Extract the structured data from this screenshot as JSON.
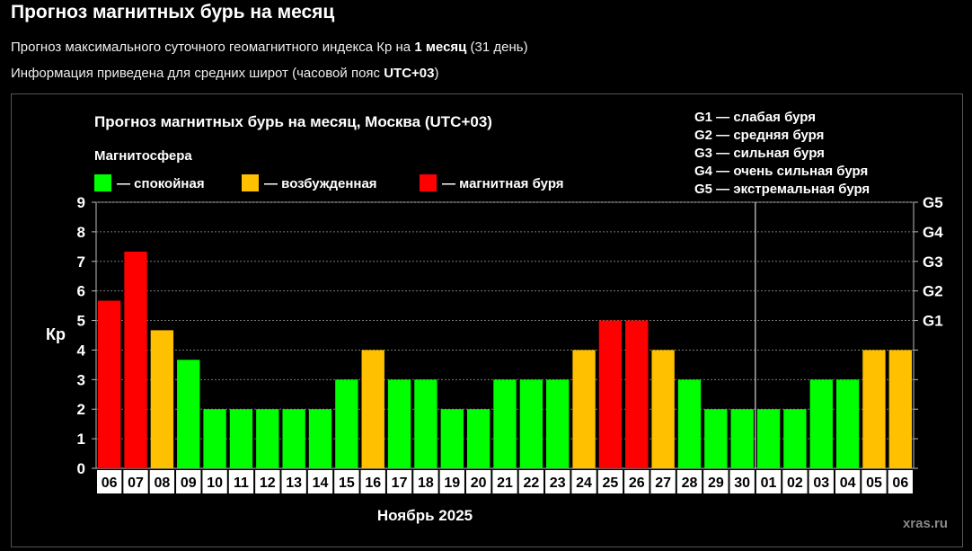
{
  "header": {
    "title": "Прогноз магнитных бурь на месяц",
    "line1_prefix": "Прогноз максимального суточного геомагнитного индекса Кр на ",
    "line1_bold": "1 месяц",
    "line1_suffix": " (31 день)",
    "line2_prefix": "Информация приведена для средних широт (часовой пояс ",
    "line2_bold": "UTC+03",
    "line2_suffix": ")"
  },
  "chart_data": {
    "type": "bar",
    "title": "Прогноз магнитных бурь на месяц, Москва (UTC+03)",
    "ylabel": "Кр",
    "xlabel": "Ноябрь 2025",
    "ylim": [
      0,
      9
    ],
    "yticks": [
      "0",
      "1",
      "2",
      "3",
      "4",
      "5",
      "6",
      "7",
      "8",
      "9"
    ],
    "right_axis": [
      {
        "kp": 5,
        "label": "G1"
      },
      {
        "kp": 6,
        "label": "G2"
      },
      {
        "kp": 7,
        "label": "G3"
      },
      {
        "kp": 8,
        "label": "G4"
      },
      {
        "kp": 9,
        "label": "G5"
      }
    ],
    "legend_title": "Магнитосфера",
    "legend": [
      {
        "label": "— спокойная",
        "color": "#00ff00"
      },
      {
        "label": "— возбужденная",
        "color": "#ffc000"
      },
      {
        "label": "— магнитная буря",
        "color": "#ff0000"
      }
    ],
    "storm_scale": [
      "G1 — слабая буря",
      "G2 — средняя буря",
      "G3 — сильная буря",
      "G4 — очень сильная буря",
      "G5 — экстремальная буря"
    ],
    "categories": [
      "06",
      "07",
      "08",
      "09",
      "10",
      "11",
      "12",
      "13",
      "14",
      "15",
      "16",
      "17",
      "18",
      "19",
      "20",
      "21",
      "22",
      "23",
      "24",
      "25",
      "26",
      "27",
      "28",
      "29",
      "30",
      "01",
      "02",
      "03",
      "04",
      "05",
      "06"
    ],
    "values": [
      5.67,
      7.33,
      4.67,
      3.67,
      2,
      2,
      2,
      2,
      2,
      3,
      4,
      3,
      3,
      2,
      2,
      3,
      3,
      3,
      4,
      5,
      5,
      4,
      3,
      2,
      2,
      2,
      2,
      3,
      3,
      4,
      4
    ],
    "month_boundary_after": "30",
    "grid": true,
    "watermark": "xras.ru",
    "colors": {
      "quiet": "#00ff00",
      "active": "#ffc000",
      "storm": "#ff0000"
    }
  }
}
